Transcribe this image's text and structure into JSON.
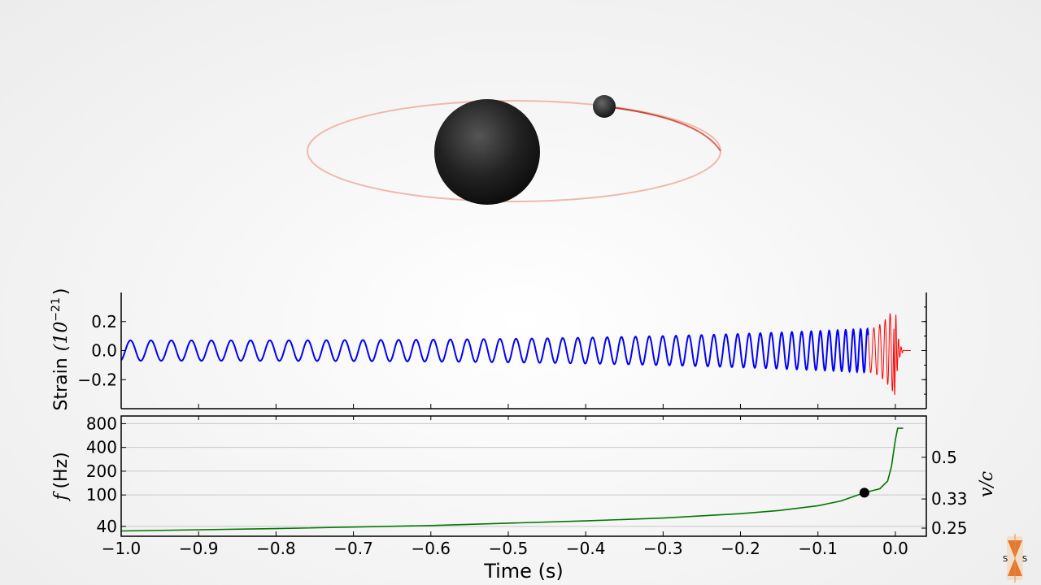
{
  "chart_data": [
    {
      "type": "line",
      "title": "",
      "ylabel": "Strain",
      "ylabel_unit": "(10",
      "ylabel_exp": "−21",
      "ylabel_close": ")",
      "ylim": [
        -0.4,
        0.4
      ],
      "yticks": [
        0.2,
        0.0,
        -0.2
      ],
      "ytick_labels": [
        "0.2",
        "0.0",
        "−0.2"
      ],
      "xlim": [
        -1.0,
        0.04
      ],
      "series": [
        {
          "name": "inspiral",
          "color": "#0000ff",
          "t_range": [
            -1.0,
            -0.035
          ],
          "amplitude": [
            0.07,
            0.15
          ]
        },
        {
          "name": "merger-ringdown",
          "color": "#ff0000",
          "t_range": [
            -0.035,
            0.01
          ],
          "peak_amplitude": 0.31
        }
      ]
    },
    {
      "type": "line",
      "xlabel": "Time (s)",
      "ylabel_f": "f",
      "ylabel": "(Hz)",
      "yscale": "log",
      "ylim": [
        30,
        1000
      ],
      "yticks": [
        800,
        400,
        200,
        100,
        40
      ],
      "ytick_labels": [
        "800",
        "400",
        "200",
        "100",
        "40"
      ],
      "right_axis_label": "v/c",
      "right_ticks": [
        {
          "value": 0.5,
          "label": "0.5",
          "f": 300
        },
        {
          "value": 0.33,
          "label": "0.33",
          "f": 89
        },
        {
          "value": 0.25,
          "label": "0.25",
          "f": 38
        }
      ],
      "xlim": [
        -1.0,
        0.04
      ],
      "xticks": [
        -1.0,
        -0.9,
        -0.8,
        -0.7,
        -0.6,
        -0.5,
        -0.4,
        -0.3,
        -0.2,
        -0.1,
        0.0
      ],
      "xtick_labels": [
        "−1.0",
        "−0.9",
        "−0.8",
        "−0.7",
        "−0.6",
        "−0.5",
        "−0.4",
        "−0.3",
        "−0.2",
        "−0.1",
        "0.0"
      ],
      "series": [
        {
          "name": "frequency",
          "color": "#007700",
          "x": [
            -1.0,
            -0.8,
            -0.6,
            -0.4,
            -0.3,
            -0.2,
            -0.15,
            -0.1,
            -0.07,
            -0.04,
            -0.02,
            -0.01,
            -0.005,
            0.0,
            0.003,
            0.01
          ],
          "y": [
            35,
            37.5,
            41,
            47,
            51,
            58,
            63.5,
            73,
            84,
            107,
            120,
            150,
            230,
            500,
            700,
            700
          ]
        }
      ],
      "marker": {
        "x": -0.04,
        "y": 107,
        "color": "#000000"
      }
    }
  ],
  "colors": {
    "orbit": "#e8a89c",
    "orbit_trail": "#c0392b",
    "black_hole": "#222222",
    "logo": "#e8772e"
  },
  "icons": {
    "logo": "sxs-logo-icon"
  }
}
